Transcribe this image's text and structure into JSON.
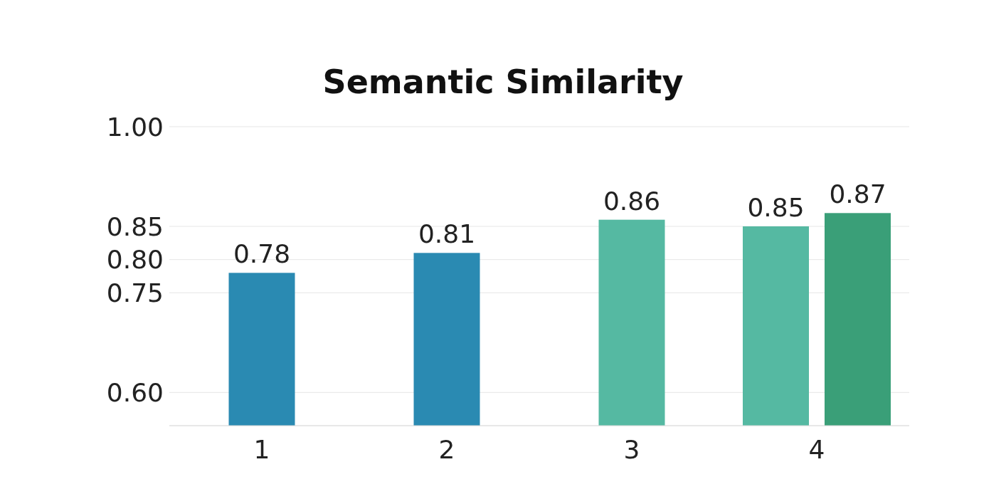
{
  "chart_data": {
    "type": "bar",
    "title": "Semantic Similarity",
    "categories": [
      "1",
      "2",
      "3",
      "4"
    ],
    "series": [
      {
        "colors": [
          "#2a8ab2",
          "#2a8ab2",
          "#55b9a2",
          "#55b9a2"
        ],
        "values": [
          0.78,
          0.81,
          0.86,
          0.85
        ],
        "value_labels": [
          "0.78",
          "0.81",
          "0.86",
          "0.85"
        ]
      },
      {
        "colors": [
          null,
          null,
          null,
          "#3a9f78"
        ],
        "values": [
          null,
          null,
          null,
          0.87
        ],
        "value_labels": [
          null,
          null,
          null,
          "0.87"
        ]
      }
    ],
    "ylim": [
      0.55,
      1.0
    ],
    "yticks": [
      {
        "value": 0.6,
        "label": "0.60"
      },
      0.75,
      {
        "value": 0.8,
        "label": "0.80"
      },
      0.85,
      {
        "value": 1.0,
        "label": "1.00"
      }
    ],
    "grid": "y",
    "legend": false
  }
}
